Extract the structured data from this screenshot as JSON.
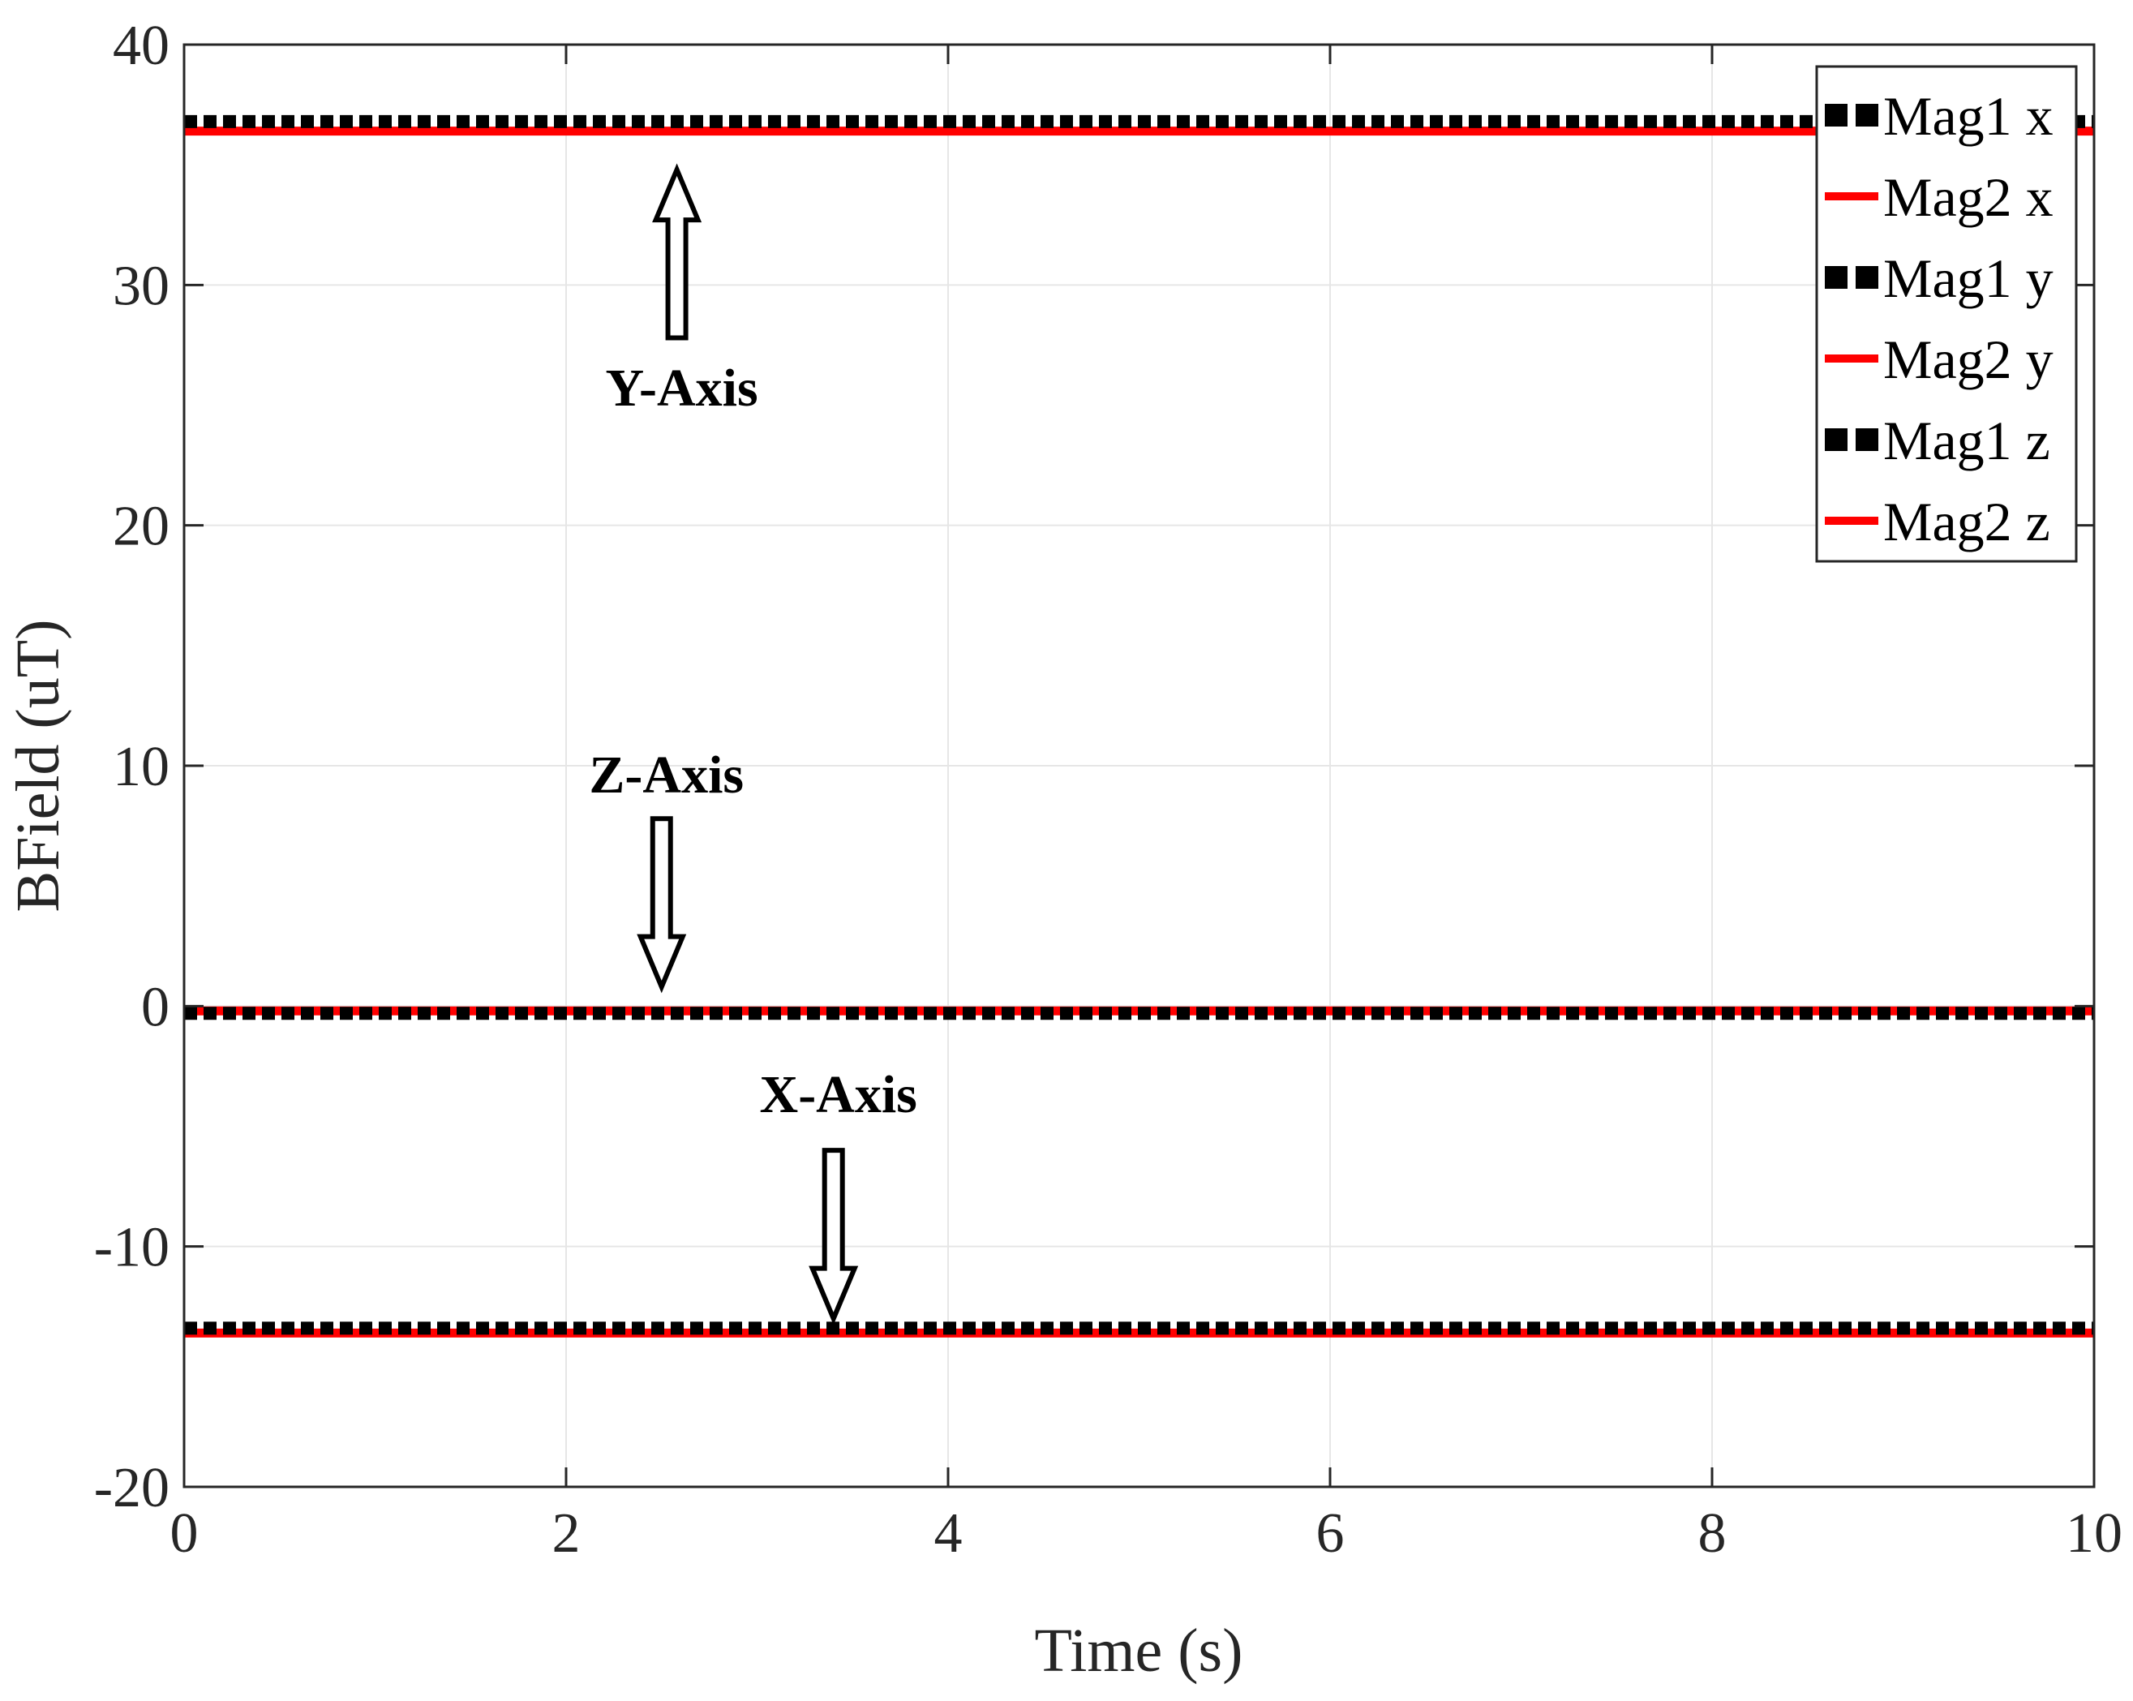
{
  "chart_data": {
    "type": "line",
    "title": "",
    "xlabel": "Time (s)",
    "ylabel": "BField (uT)",
    "xlim": [
      0,
      10
    ],
    "ylim": [
      -20,
      40
    ],
    "x_ticks": [
      0,
      2,
      4,
      6,
      8,
      10
    ],
    "y_ticks": [
      -20,
      -10,
      0,
      10,
      20,
      30,
      40
    ],
    "x_tick_labels": [
      "0",
      "2",
      "4",
      "6",
      "8",
      "10"
    ],
    "y_tick_labels": [
      "-20",
      "-10",
      "0",
      "10",
      "20",
      "30",
      "40"
    ],
    "grid": true,
    "legend_position": "top-right",
    "x": [
      0,
      10
    ],
    "series": [
      {
        "name": "Mag1 x",
        "values": [
          -13.4,
          -13.4
        ],
        "color": "#000000",
        "style": "dotted"
      },
      {
        "name": "Mag2 x",
        "values": [
          -13.6,
          -13.6
        ],
        "color": "#ff0000",
        "style": "solid"
      },
      {
        "name": "Mag1 y",
        "values": [
          36.8,
          36.8
        ],
        "color": "#000000",
        "style": "dotted"
      },
      {
        "name": "Mag2 y",
        "values": [
          36.4,
          36.4
        ],
        "color": "#ff0000",
        "style": "solid"
      },
      {
        "name": "Mag1 z",
        "values": [
          -0.3,
          -0.3
        ],
        "color": "#000000",
        "style": "dotted"
      },
      {
        "name": "Mag2 z",
        "values": [
          -0.2,
          -0.2
        ],
        "color": "#ff0000",
        "style": "solid"
      }
    ],
    "annotations": [
      {
        "text": "Y-Axis",
        "x": 2.58,
        "y": 25.8,
        "arrow_dir": "up",
        "arrow_from": 27.8,
        "arrow_to": 34.8
      },
      {
        "text": "Z-Axis",
        "x": 2.5,
        "y": 9.7,
        "arrow_dir": "down",
        "arrow_from": 7.8,
        "arrow_to": 0.8
      },
      {
        "text": "X-Axis",
        "x": 3.4,
        "y": -3.6,
        "arrow_dir": "down",
        "arrow_from": -6.0,
        "arrow_to": -13.0
      }
    ]
  }
}
